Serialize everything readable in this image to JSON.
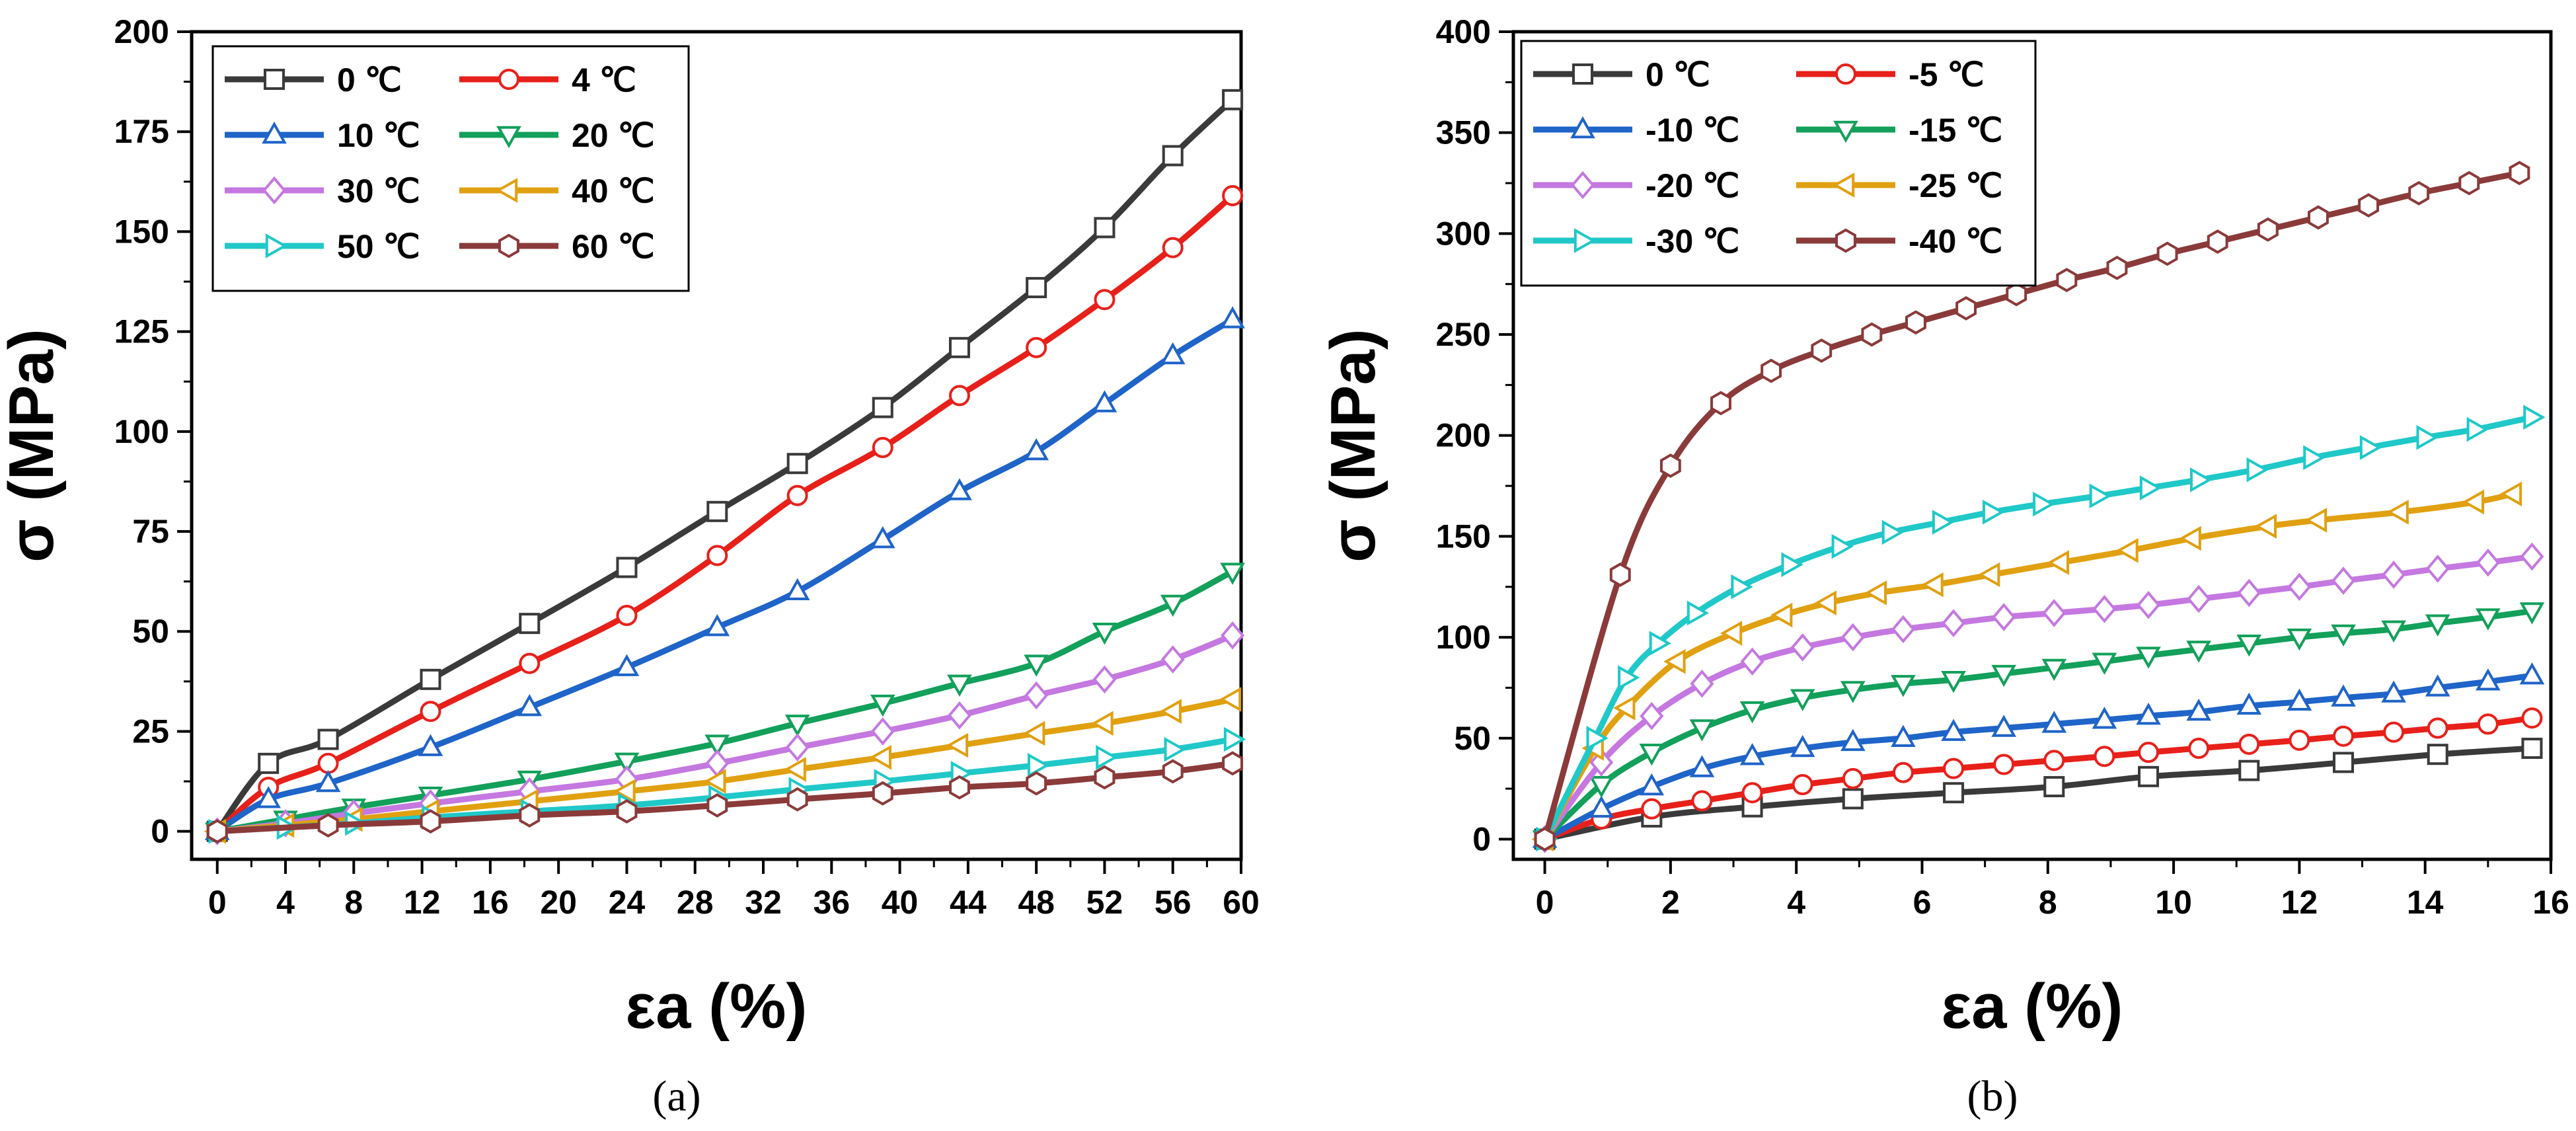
{
  "chart_data": [
    {
      "type": "line",
      "panel_label": "(a)",
      "xlabel": "εa (%)",
      "ylabel": "σ (MPa)",
      "xlim": [
        -1.5,
        60
      ],
      "ylim": [
        -7,
        200
      ],
      "xticks": [
        0,
        4,
        8,
        12,
        16,
        20,
        24,
        28,
        32,
        36,
        40,
        44,
        48,
        52,
        56,
        60
      ],
      "yticks": [
        0,
        25,
        50,
        75,
        100,
        125,
        150,
        175,
        200
      ],
      "legend_position": "top-left",
      "legend_columns": 2,
      "series": [
        {
          "name": "0 ℃",
          "color": "#3a3a3a",
          "marker": "square",
          "x": [
            0,
            3,
            6.5,
            12.5,
            18.3,
            24,
            29.3,
            34,
            39,
            43.5,
            48,
            52,
            56,
            59.5
          ],
          "y": [
            0,
            17,
            23,
            38,
            52,
            66,
            80,
            92,
            106,
            121,
            136,
            151,
            169,
            183
          ]
        },
        {
          "name": "4 ℃",
          "color": "#e8201a",
          "marker": "circle",
          "x": [
            0,
            3,
            6.5,
            12.5,
            18.3,
            24,
            29.3,
            34,
            39,
            43.5,
            48,
            52,
            56,
            59.5
          ],
          "y": [
            0,
            11,
            17,
            30,
            42,
            54,
            69,
            84,
            96,
            109,
            121,
            133,
            146,
            159
          ]
        },
        {
          "name": "10 ℃",
          "color": "#1f64c8",
          "marker": "triangle-up",
          "x": [
            0,
            3,
            6.5,
            12.5,
            18.3,
            24,
            29.3,
            34,
            39,
            43.5,
            48,
            52,
            56,
            59.5
          ],
          "y": [
            0,
            8,
            12,
            21,
            31,
            41,
            51,
            60,
            73,
            85,
            95,
            107,
            119,
            128
          ]
        },
        {
          "name": "20 ℃",
          "color": "#12a05a",
          "marker": "triangle-down",
          "x": [
            0,
            4,
            8,
            12.5,
            18.3,
            24,
            29.3,
            34,
            39,
            43.5,
            48,
            52,
            56,
            59.5
          ],
          "y": [
            0,
            3,
            6,
            9,
            13,
            17.5,
            22,
            27,
            32,
            37,
            42,
            50,
            57,
            65
          ]
        },
        {
          "name": "30 ℃",
          "color": "#c478e0",
          "marker": "diamond",
          "x": [
            0,
            4,
            8,
            12.5,
            18.3,
            24,
            29.3,
            34,
            39,
            43.5,
            48,
            52,
            56,
            59.5
          ],
          "y": [
            0,
            2,
            4.5,
            7,
            10,
            13,
            17,
            21,
            25,
            29,
            34,
            38,
            43,
            49
          ]
        },
        {
          "name": "40 ℃",
          "color": "#e0a010",
          "marker": "triangle-left",
          "x": [
            0,
            4,
            8,
            12.5,
            18.3,
            24,
            29.3,
            34,
            39,
            43.5,
            48,
            52,
            56,
            59.5
          ],
          "y": [
            0,
            1.5,
            3,
            5,
            7.5,
            10,
            12.5,
            15.5,
            18.5,
            21.5,
            24.5,
            27,
            30,
            33
          ]
        },
        {
          "name": "50 ℃",
          "color": "#20c8c8",
          "marker": "triangle-right",
          "x": [
            0,
            4,
            8,
            12.5,
            18.3,
            24,
            29.3,
            34,
            39,
            43.5,
            48,
            52,
            56,
            59.5
          ],
          "y": [
            0,
            1,
            2,
            3.5,
            5,
            6.5,
            8.5,
            10.5,
            12.5,
            14.5,
            16.5,
            18.5,
            20.5,
            23
          ]
        },
        {
          "name": "60 ℃",
          "color": "#8b3a3a",
          "marker": "hexagon",
          "x": [
            0,
            6.5,
            12.5,
            18.3,
            24,
            29.3,
            34,
            39,
            43.5,
            48,
            52,
            56,
            59.5
          ],
          "y": [
            0,
            1.5,
            2.5,
            4,
            5,
            6.5,
            8,
            9.5,
            11,
            12,
            13.5,
            15,
            17
          ]
        }
      ]
    },
    {
      "type": "line",
      "panel_label": "(b)",
      "xlabel": "εa (%)",
      "ylabel": "σ (MPa)",
      "xlim": [
        -0.5,
        16
      ],
      "ylim": [
        -10,
        400
      ],
      "xticks": [
        0,
        2,
        4,
        6,
        8,
        10,
        12,
        14,
        16
      ],
      "yticks": [
        0,
        50,
        100,
        150,
        200,
        250,
        300,
        350,
        400
      ],
      "legend_position": "top-left",
      "legend_columns": 2,
      "series": [
        {
          "name": "0 ℃",
          "color": "#3a3a3a",
          "marker": "square",
          "x": [
            0,
            1.7,
            3.3,
            4.9,
            6.5,
            8.1,
            9.6,
            11.2,
            12.7,
            14.2,
            15.7
          ],
          "y": [
            0,
            11,
            16,
            20,
            23,
            26,
            31,
            34,
            38,
            42,
            45
          ]
        },
        {
          "name": "-5 ℃",
          "color": "#e8201a",
          "marker": "circle",
          "x": [
            0,
            0.9,
            1.7,
            2.5,
            3.3,
            4.1,
            4.9,
            5.7,
            6.5,
            7.3,
            8.1,
            8.9,
            9.6,
            10.4,
            11.2,
            12,
            12.7,
            13.5,
            14.2,
            15,
            15.7
          ],
          "y": [
            0,
            10,
            15,
            19,
            23,
            27,
            30,
            33,
            35,
            37,
            39,
            41,
            43,
            45,
            47,
            49,
            51,
            53,
            55,
            57,
            60
          ]
        },
        {
          "name": "-10 ℃",
          "color": "#1f64c8",
          "marker": "triangle-up",
          "x": [
            0,
            0.9,
            1.7,
            2.5,
            3.3,
            4.1,
            4.9,
            5.7,
            6.5,
            7.3,
            8.1,
            8.9,
            9.6,
            10.4,
            11.2,
            12,
            12.7,
            13.5,
            14.2,
            15,
            15.7
          ],
          "y": [
            0,
            15,
            26,
            35,
            41,
            45,
            48,
            50,
            53,
            55,
            57,
            59,
            61,
            63,
            66,
            68,
            70,
            72,
            75,
            78,
            81
          ]
        },
        {
          "name": "-15 ℃",
          "color": "#12a05a",
          "marker": "triangle-down",
          "x": [
            0,
            0.9,
            1.7,
            2.5,
            3.3,
            4.1,
            4.9,
            5.7,
            6.5,
            7.3,
            8.1,
            8.9,
            9.6,
            10.4,
            11.2,
            12,
            12.7,
            13.5,
            14.2,
            15,
            15.7
          ],
          "y": [
            0,
            27,
            43,
            55,
            64,
            70,
            74,
            77,
            79,
            82,
            85,
            88,
            91,
            94,
            97,
            100,
            102,
            104,
            107,
            110,
            113
          ]
        },
        {
          "name": "-20 ℃",
          "color": "#c478e0",
          "marker": "diamond",
          "x": [
            0,
            0.9,
            1.7,
            2.5,
            3.3,
            4.1,
            4.9,
            5.7,
            6.5,
            7.3,
            8.1,
            8.9,
            9.6,
            10.4,
            11.2,
            12,
            12.7,
            13.5,
            14.2,
            15,
            15.7
          ],
          "y": [
            0,
            38,
            61,
            77,
            88,
            95,
            100,
            104,
            107,
            110,
            112,
            114,
            116,
            119,
            122,
            125,
            128,
            131,
            134,
            137,
            140
          ]
        },
        {
          "name": "-25 ℃",
          "color": "#e0a010",
          "marker": "triangle-left",
          "x": [
            0,
            0.8,
            1.3,
            2.1,
            3,
            3.8,
            4.5,
            5.3,
            6.2,
            7.1,
            8.2,
            9.3,
            10.3,
            11.5,
            12.3,
            13.6,
            14.8,
            15.4
          ],
          "y": [
            0,
            45,
            65,
            88,
            102,
            111,
            117,
            122,
            126,
            131,
            137,
            143,
            149,
            155,
            158,
            162,
            167,
            171
          ]
        },
        {
          "name": "-30 ℃",
          "color": "#20c8c8",
          "marker": "triangle-right",
          "x": [
            0,
            0.8,
            1.3,
            1.8,
            2.4,
            3.1,
            3.9,
            4.7,
            5.5,
            6.3,
            7.1,
            7.9,
            8.8,
            9.6,
            10.4,
            11.3,
            12.2,
            13.1,
            14,
            14.8,
            15.7
          ],
          "y": [
            0,
            50,
            80,
            97,
            112,
            125,
            136,
            145,
            152,
            157,
            162,
            166,
            170,
            174,
            178,
            183,
            189,
            194,
            199,
            203,
            209
          ]
        },
        {
          "name": "-40 ℃",
          "color": "#8b3a3a",
          "marker": "hexagon",
          "x": [
            0,
            1.2,
            2,
            2.8,
            3.6,
            4.4,
            5.2,
            5.9,
            6.7,
            7.5,
            8.3,
            9.1,
            9.9,
            10.7,
            11.5,
            12.3,
            13.1,
            13.9,
            14.7,
            15.5
          ],
          "y": [
            0,
            131,
            185,
            216,
            232,
            242,
            250,
            256,
            263,
            270,
            277,
            283,
            290,
            296,
            302,
            308,
            314,
            320,
            325,
            330
          ]
        }
      ]
    }
  ]
}
